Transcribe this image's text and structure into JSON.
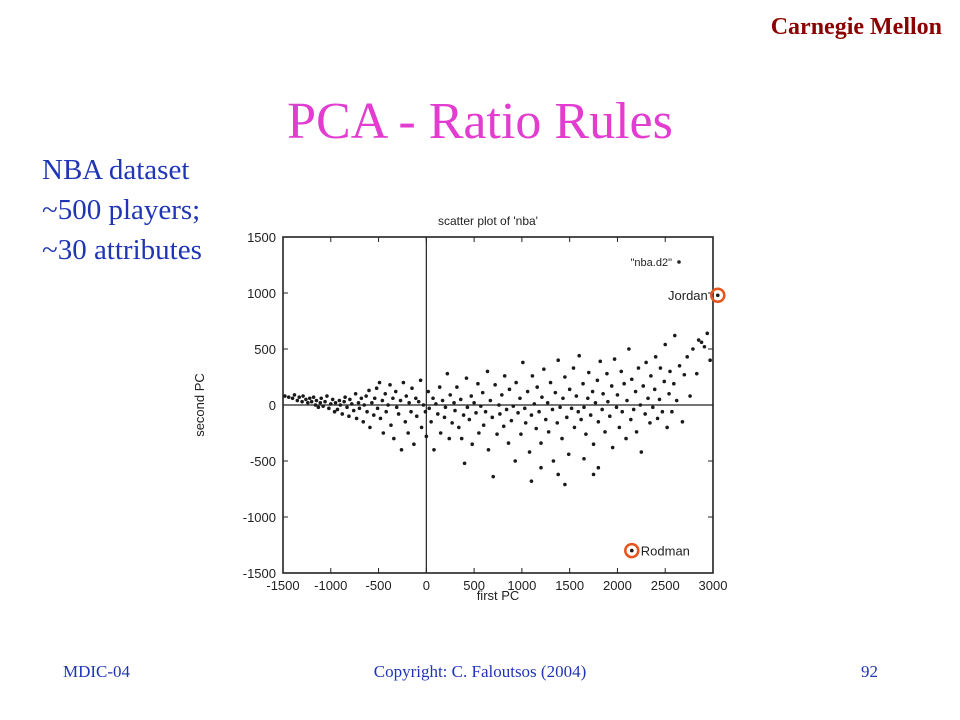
{
  "header": {
    "org": "Carnegie Mellon"
  },
  "slide": {
    "title": "PCA - Ratio Rules",
    "info_lines": [
      "NBA dataset",
      "~500 players;",
      "~30 attributes"
    ]
  },
  "footer": {
    "left": "MDIC-04",
    "center": "Copyright:  C. Faloutsos (2004)",
    "right": "92"
  },
  "highlight_color": "#e8541e",
  "chart_data": {
    "type": "scatter",
    "title": "scatter plot of 'nba'",
    "xlabel": "first PC",
    "ylabel": "second PC",
    "xlim": [
      -1500,
      3000
    ],
    "ylim": [
      -1500,
      1500
    ],
    "xticks": [
      -1500,
      -1000,
      -500,
      0,
      500,
      1000,
      1500,
      2000,
      2500,
      3000
    ],
    "yticks": [
      -1500,
      -1000,
      -500,
      0,
      500,
      1000,
      1500
    ],
    "legend": {
      "label": "\"nba.d2\"",
      "position": "top-right"
    },
    "zero_axes": true,
    "annotations": [
      {
        "text": "Jordan",
        "x": 3050,
        "y": 980,
        "circled": true
      },
      {
        "text": "Rodman",
        "x": 2150,
        "y": -1300,
        "circled": true
      }
    ],
    "series": [
      {
        "values": [
          [
            -1480,
            80
          ],
          [
            -1440,
            70
          ],
          [
            -1400,
            60
          ],
          [
            -1380,
            90
          ],
          [
            -1350,
            40
          ],
          [
            -1330,
            70
          ],
          [
            -1300,
            30
          ],
          [
            -1290,
            80
          ],
          [
            -1260,
            50
          ],
          [
            -1240,
            20
          ],
          [
            -1220,
            60
          ],
          [
            -1200,
            30
          ],
          [
            -1180,
            70
          ],
          [
            -1160,
            0
          ],
          [
            -1150,
            40
          ],
          [
            -1130,
            -20
          ],
          [
            -1110,
            20
          ],
          [
            -1100,
            60
          ],
          [
            -1080,
            -10
          ],
          [
            -1060,
            30
          ],
          [
            -1040,
            80
          ],
          [
            -1020,
            -30
          ],
          [
            -1000,
            10
          ],
          [
            -980,
            50
          ],
          [
            -960,
            -60
          ],
          [
            -950,
            20
          ],
          [
            -930,
            -40
          ],
          [
            -910,
            40
          ],
          [
            -900,
            0
          ],
          [
            -880,
            -80
          ],
          [
            -860,
            30
          ],
          [
            -850,
            70
          ],
          [
            -830,
            -20
          ],
          [
            -810,
            -100
          ],
          [
            -800,
            50
          ],
          [
            -780,
            10
          ],
          [
            -760,
            -50
          ],
          [
            -740,
            100
          ],
          [
            -730,
            -120
          ],
          [
            -710,
            20
          ],
          [
            -700,
            -30
          ],
          [
            -680,
            60
          ],
          [
            -660,
            -150
          ],
          [
            -650,
            0
          ],
          [
            -630,
            80
          ],
          [
            -620,
            -60
          ],
          [
            -600,
            130
          ],
          [
            -590,
            -200
          ],
          [
            -570,
            20
          ],
          [
            -550,
            -90
          ],
          [
            -540,
            60
          ],
          [
            -520,
            150
          ],
          [
            -510,
            -30
          ],
          [
            -490,
            200
          ],
          [
            -480,
            -120
          ],
          [
            -460,
            40
          ],
          [
            -450,
            -250
          ],
          [
            -430,
            100
          ],
          [
            -420,
            -60
          ],
          [
            -400,
            0
          ],
          [
            -380,
            180
          ],
          [
            -370,
            -180
          ],
          [
            -350,
            60
          ],
          [
            -340,
            -300
          ],
          [
            -320,
            120
          ],
          [
            -310,
            -20
          ],
          [
            -290,
            -80
          ],
          [
            -270,
            40
          ],
          [
            -260,
            -400
          ],
          [
            -240,
            200
          ],
          [
            -220,
            -150
          ],
          [
            -210,
            80
          ],
          [
            -190,
            -250
          ],
          [
            -180,
            20
          ],
          [
            -160,
            -60
          ],
          [
            -150,
            150
          ],
          [
            -130,
            -350
          ],
          [
            -110,
            60
          ],
          [
            -100,
            -100
          ],
          [
            -80,
            30
          ],
          [
            -60,
            220
          ],
          [
            -50,
            -200
          ],
          [
            -30,
            0
          ],
          [
            -10,
            -60
          ],
          [
            0,
            -280
          ],
          [
            20,
            120
          ],
          [
            30,
            -30
          ],
          [
            50,
            -150
          ],
          [
            70,
            60
          ],
          [
            80,
            -400
          ],
          [
            100,
            10
          ],
          [
            120,
            -80
          ],
          [
            140,
            160
          ],
          [
            150,
            -250
          ],
          [
            170,
            40
          ],
          [
            190,
            -110
          ],
          [
            200,
            -20
          ],
          [
            220,
            280
          ],
          [
            240,
            -300
          ],
          [
            250,
            90
          ],
          [
            270,
            -160
          ],
          [
            290,
            20
          ],
          [
            300,
            -50
          ],
          [
            320,
            160
          ],
          [
            340,
            -200
          ],
          [
            360,
            50
          ],
          [
            370,
            -300
          ],
          [
            390,
            -90
          ],
          [
            400,
            -520
          ],
          [
            420,
            240
          ],
          [
            430,
            -20
          ],
          [
            450,
            -130
          ],
          [
            470,
            80
          ],
          [
            480,
            -350
          ],
          [
            500,
            20
          ],
          [
            520,
            -70
          ],
          [
            540,
            190
          ],
          [
            550,
            -250
          ],
          [
            570,
            -10
          ],
          [
            590,
            110
          ],
          [
            600,
            -180
          ],
          [
            620,
            -60
          ],
          [
            640,
            300
          ],
          [
            650,
            -400
          ],
          [
            670,
            40
          ],
          [
            690,
            -110
          ],
          [
            700,
            -640
          ],
          [
            720,
            180
          ],
          [
            740,
            -260
          ],
          [
            760,
            0
          ],
          [
            770,
            -80
          ],
          [
            790,
            90
          ],
          [
            810,
            -190
          ],
          [
            820,
            260
          ],
          [
            840,
            -40
          ],
          [
            860,
            -340
          ],
          [
            870,
            140
          ],
          [
            890,
            -140
          ],
          [
            910,
            -10
          ],
          [
            930,
            -500
          ],
          [
            940,
            200
          ],
          [
            960,
            -70
          ],
          [
            980,
            60
          ],
          [
            990,
            -260
          ],
          [
            1010,
            380
          ],
          [
            1030,
            -30
          ],
          [
            1040,
            -160
          ],
          [
            1060,
            120
          ],
          [
            1080,
            -420
          ],
          [
            1100,
            -90
          ],
          [
            1110,
            260
          ],
          [
            1130,
            10
          ],
          [
            1150,
            -210
          ],
          [
            1160,
            160
          ],
          [
            1180,
            -60
          ],
          [
            1200,
            -340
          ],
          [
            1210,
            70
          ],
          [
            1230,
            320
          ],
          [
            1250,
            -130
          ],
          [
            1270,
            20
          ],
          [
            1280,
            -240
          ],
          [
            1300,
            200
          ],
          [
            1320,
            -40
          ],
          [
            1330,
            -500
          ],
          [
            1350,
            110
          ],
          [
            1370,
            -160
          ],
          [
            1380,
            400
          ],
          [
            1400,
            -20
          ],
          [
            1420,
            -300
          ],
          [
            1430,
            60
          ],
          [
            1450,
            250
          ],
          [
            1470,
            -110
          ],
          [
            1490,
            -440
          ],
          [
            1500,
            140
          ],
          [
            1520,
            -30
          ],
          [
            1540,
            330
          ],
          [
            1550,
            -200
          ],
          [
            1570,
            80
          ],
          [
            1590,
            -60
          ],
          [
            1600,
            440
          ],
          [
            1620,
            -130
          ],
          [
            1640,
            190
          ],
          [
            1650,
            -20
          ],
          [
            1670,
            -260
          ],
          [
            1690,
            60
          ],
          [
            1700,
            290
          ],
          [
            1720,
            -90
          ],
          [
            1740,
            120
          ],
          [
            1750,
            -350
          ],
          [
            1770,
            20
          ],
          [
            1790,
            220
          ],
          [
            1800,
            -150
          ],
          [
            1820,
            390
          ],
          [
            1840,
            -40
          ],
          [
            1850,
            100
          ],
          [
            1870,
            -240
          ],
          [
            1890,
            280
          ],
          [
            1900,
            30
          ],
          [
            1920,
            -100
          ],
          [
            1940,
            170
          ],
          [
            1950,
            -380
          ],
          [
            1970,
            410
          ],
          [
            1990,
            -20
          ],
          [
            2000,
            90
          ],
          [
            2020,
            -200
          ],
          [
            2040,
            300
          ],
          [
            2050,
            -60
          ],
          [
            2070,
            190
          ],
          [
            2090,
            -300
          ],
          [
            2100,
            40
          ],
          [
            2120,
            500
          ],
          [
            2140,
            -130
          ],
          [
            2150,
            230
          ],
          [
            2170,
            -40
          ],
          [
            2190,
            120
          ],
          [
            2200,
            -240
          ],
          [
            2220,
            330
          ],
          [
            2240,
            0
          ],
          [
            2250,
            -420
          ],
          [
            2270,
            170
          ],
          [
            2290,
            -80
          ],
          [
            2300,
            380
          ],
          [
            2320,
            60
          ],
          [
            2340,
            -160
          ],
          [
            2350,
            260
          ],
          [
            2370,
            -20
          ],
          [
            2390,
            140
          ],
          [
            2400,
            430
          ],
          [
            2420,
            -120
          ],
          [
            2440,
            50
          ],
          [
            2450,
            330
          ],
          [
            2470,
            -60
          ],
          [
            2490,
            210
          ],
          [
            2500,
            540
          ],
          [
            2520,
            -200
          ],
          [
            2540,
            100
          ],
          [
            2550,
            300
          ],
          [
            2570,
            -60
          ],
          [
            2590,
            190
          ],
          [
            2600,
            620
          ],
          [
            2620,
            40
          ],
          [
            2650,
            350
          ],
          [
            2680,
            -150
          ],
          [
            2700,
            270
          ],
          [
            2730,
            430
          ],
          [
            2760,
            80
          ],
          [
            2790,
            500
          ],
          [
            2830,
            280
          ],
          [
            2850,
            580
          ],
          [
            2880,
            560
          ],
          [
            2910,
            520
          ],
          [
            2940,
            640
          ],
          [
            2970,
            400
          ],
          [
            1380,
            -620
          ],
          [
            1450,
            -710
          ],
          [
            1200,
            -560
          ],
          [
            1650,
            -480
          ],
          [
            1100,
            -680
          ],
          [
            1800,
            -560
          ],
          [
            1750,
            -620
          ]
        ]
      }
    ]
  }
}
